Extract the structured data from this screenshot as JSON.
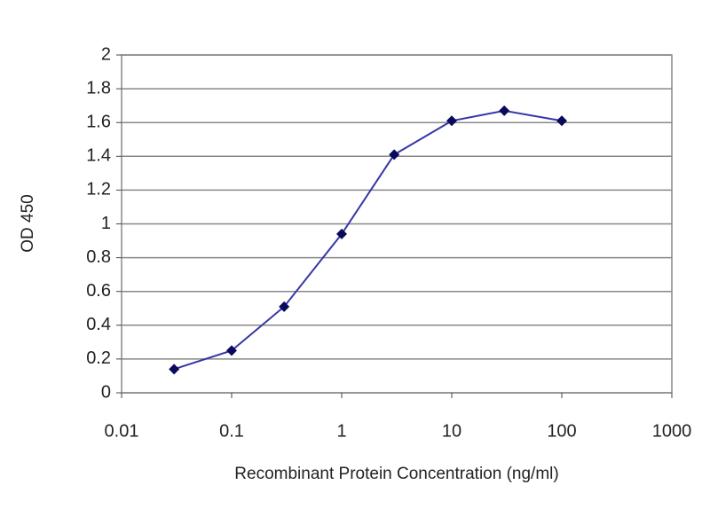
{
  "chart_data": {
    "type": "line",
    "x_label": "Recombinant Protein Concentration (ng/ml)",
    "y_label": "OD 450",
    "x": [
      0.03,
      0.1,
      0.3,
      1,
      3,
      10,
      30,
      100
    ],
    "y": [
      0.14,
      0.25,
      0.51,
      0.94,
      1.41,
      1.61,
      1.67,
      1.61
    ],
    "line_color": "#3636a8",
    "marker_color": "#0a0a5c",
    "xscale": "log",
    "xlim": [
      0.01,
      1000
    ],
    "xticks": [
      0.01,
      0.1,
      1,
      10,
      100,
      1000
    ],
    "ylim": [
      0,
      2
    ],
    "yticks": [
      0,
      0.2,
      0.4,
      0.6,
      0.8,
      1,
      1.2,
      1.4,
      1.6,
      1.8,
      2
    ],
    "grid": true
  }
}
